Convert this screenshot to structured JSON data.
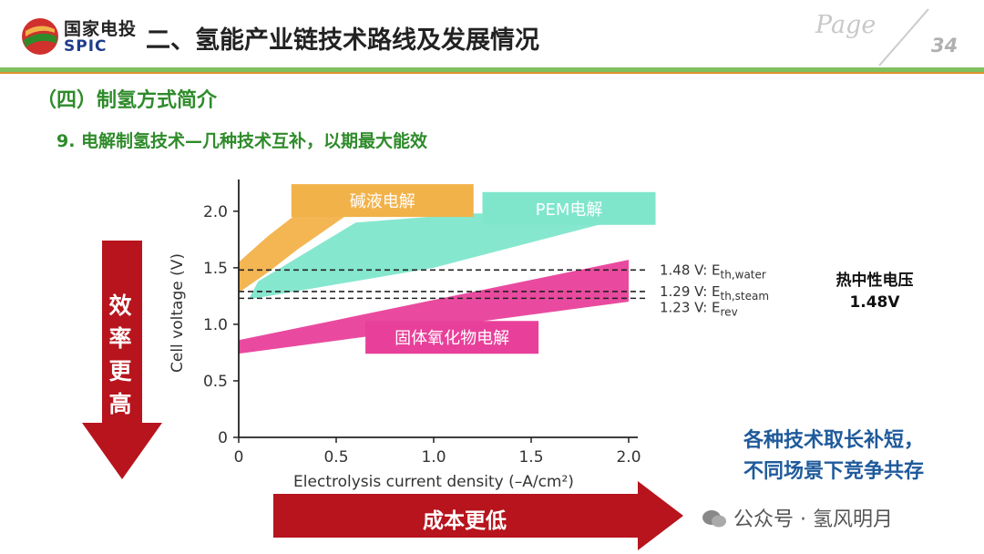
{
  "header": {
    "logo_cn": "国家电投",
    "logo_en": "SPIC",
    "title": "二、氢能产业链技术路线及发展情况",
    "page_word": "Page",
    "page_number": "34"
  },
  "section_title": "（四）制氢方式简介",
  "sub_title": "9. 电解制氢技术—几种技术互补，以期最大能效",
  "chart_data": {
    "type": "area",
    "xlabel": "Electrolysis current density (–A/cm²)",
    "ylabel": "Cell voltage (V)",
    "xlim": [
      0,
      2.0
    ],
    "ylim": [
      0,
      2.2
    ],
    "x_ticks": [
      "0",
      "0.5",
      "1.0",
      "1.5",
      "2.0"
    ],
    "y_ticks": [
      "0",
      "0.5",
      "1.0",
      "1.5",
      "2.0"
    ],
    "reference_lines": [
      {
        "value": 1.48,
        "label_main": "1.48 V: E",
        "label_sub": "th,water"
      },
      {
        "value": 1.29,
        "label_main": "1.29 V: E",
        "label_sub": "th,steam"
      },
      {
        "value": 1.23,
        "label_main": "1.23 V: E",
        "label_sub": "rev"
      }
    ],
    "series": [
      {
        "name": "碱液电解",
        "color": "#f2b24a",
        "upper": [
          [
            0,
            1.55
          ],
          [
            0.15,
            1.78
          ],
          [
            0.3,
            1.98
          ],
          [
            0.36,
            2.02
          ]
        ],
        "lower": [
          [
            0,
            1.28
          ],
          [
            0.15,
            1.46
          ],
          [
            0.3,
            1.66
          ],
          [
            0.6,
            2.02
          ]
        ]
      },
      {
        "name": "PEM电解",
        "color": "#7fe6cc",
        "upper": [
          [
            0.1,
            1.38
          ],
          [
            0.6,
            1.9
          ],
          [
            1.2,
            1.98
          ],
          [
            1.98,
            1.98
          ]
        ],
        "lower": [
          [
            0.05,
            1.22
          ],
          [
            1.0,
            1.5
          ],
          [
            1.98,
            1.94
          ]
        ]
      },
      {
        "name": "固体氧化物电解",
        "color": "#e8409a",
        "upper": [
          [
            0,
            0.86
          ],
          [
            2.0,
            1.57
          ]
        ],
        "lower": [
          [
            0,
            0.74
          ],
          [
            2.0,
            1.2
          ]
        ]
      }
    ]
  },
  "side_label": {
    "line1": "热中性电压",
    "line2": "1.48V"
  },
  "efficiency_arrow": {
    "chars": [
      "效",
      "率",
      "更",
      "高"
    ]
  },
  "cost_arrow": {
    "text": "成本更低"
  },
  "conclusion": {
    "line1": "各种技术取长补短，",
    "line2": "不同场景下竞争共存"
  },
  "watermark": "公众号 · 氢风明月",
  "colors": {
    "brand_green": "#2e8b2a",
    "arrow_red": "#b7141d",
    "conclusion_blue": "#1f5a9b"
  }
}
